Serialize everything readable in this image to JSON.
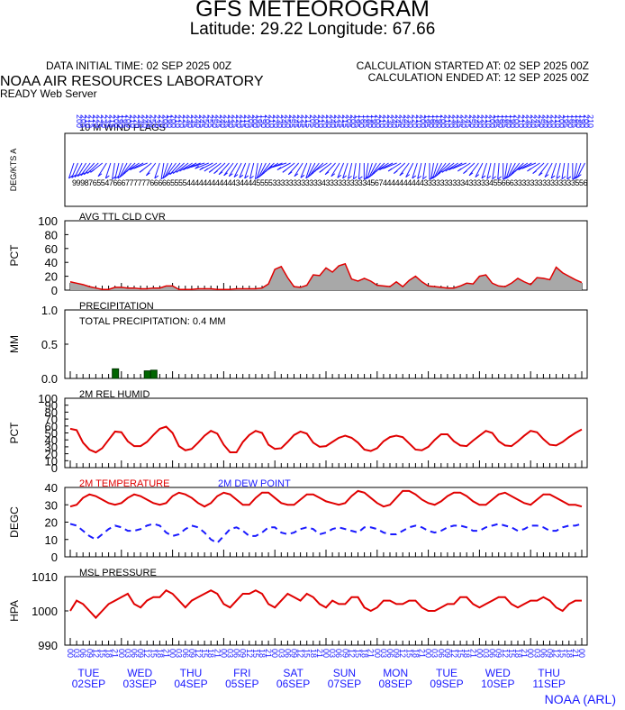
{
  "header": {
    "title": "GFS METEOROGRAM",
    "subtitle": "Latitude: 29.22 Longitude:  67.66",
    "init_time": "DATA INITIAL TIME: 02 SEP 2025 00Z",
    "calc_started": "CALCULATION STARTED AT: 02 SEP 2025 00Z",
    "calc_ended": "CALCULATION ENDED AT: 12 SEP 2025 00Z",
    "org": "NOAA AIR RESOURCES LABORATORY",
    "server": "READY Web Server",
    "footer": "NOAA (ARL)"
  },
  "colors": {
    "red": "#e00000",
    "blue": "#1a1aff",
    "green": "#006600",
    "fill_gray": "#a8a8a8"
  },
  "time_axis": {
    "hours": [
      "00",
      "03",
      "06",
      "09",
      "12",
      "15",
      "18",
      "21"
    ],
    "days": [
      {
        "dow": "TUE",
        "date": "02SEP"
      },
      {
        "dow": "WED",
        "date": "03SEP"
      },
      {
        "dow": "THU",
        "date": "04SEP"
      },
      {
        "dow": "FRI",
        "date": "05SEP"
      },
      {
        "dow": "SAT",
        "date": "06SEP"
      },
      {
        "dow": "SUN",
        "date": "07SEP"
      },
      {
        "dow": "MON",
        "date": "08SEP"
      },
      {
        "dow": "TUE",
        "date": "09SEP"
      },
      {
        "dow": "WED",
        "date": "10SEP"
      },
      {
        "dow": "THU",
        "date": "11SEP"
      }
    ]
  },
  "chart_data": [
    {
      "type": "wind_barbs",
      "title": "10 M  WIND FLAGS",
      "ylabel": "DEG/KTS  A",
      "x_hours": [
        0,
        240
      ],
      "direction_deg": [
        200,
        205,
        210,
        215,
        220,
        225,
        230,
        235,
        215,
        200,
        190,
        195,
        200,
        210,
        220,
        230,
        240,
        245,
        250,
        235,
        220,
        200,
        190,
        200,
        210,
        220,
        225,
        230,
        235,
        240,
        245,
        250,
        255,
        250,
        245,
        240,
        235,
        230,
        225,
        220,
        215,
        210,
        205,
        200,
        195,
        190,
        200,
        210,
        220,
        230,
        240,
        250,
        255,
        245,
        235,
        225,
        215,
        205,
        200,
        210,
        220,
        230,
        240,
        235,
        225,
        215,
        205,
        200,
        195,
        190,
        185,
        180,
        190,
        200,
        210,
        220,
        230,
        240,
        245,
        250,
        240,
        230,
        220,
        210,
        200,
        195,
        190,
        180,
        190,
        200,
        210,
        220,
        230,
        235,
        240,
        245,
        250,
        240,
        230,
        220,
        210,
        200,
        195,
        190,
        185,
        180,
        190,
        200,
        210,
        220,
        230,
        240,
        245,
        250,
        240,
        230,
        220,
        210,
        200,
        195,
        190,
        185,
        180,
        190,
        200,
        210
      ],
      "speed_kts": [
        9,
        9,
        9,
        8,
        7,
        6,
        5,
        5,
        4,
        7,
        6,
        6,
        6,
        7,
        7,
        7,
        7,
        7,
        7,
        6,
        6,
        6,
        6,
        6,
        5,
        5,
        5,
        5,
        4,
        4,
        4,
        4,
        4,
        4,
        4,
        4,
        4,
        4,
        4,
        4,
        3,
        4,
        4,
        4,
        4,
        5,
        5,
        5,
        5,
        3,
        3,
        3,
        3,
        3,
        3,
        3,
        3,
        3,
        3,
        3,
        3,
        4,
        3,
        3,
        3,
        3,
        3,
        3,
        3,
        3,
        3,
        3,
        4,
        5,
        6,
        7,
        4,
        4,
        4,
        4,
        4,
        4,
        4,
        4,
        4,
        4,
        3,
        3,
        3,
        3,
        3,
        3,
        3,
        3,
        3,
        3,
        4,
        3,
        3,
        3,
        3,
        3,
        4,
        5,
        5,
        6,
        6,
        6,
        3,
        3,
        3,
        3,
        3,
        3,
        3,
        3,
        3,
        3,
        3,
        3,
        3,
        3,
        3,
        5,
        5,
        6
      ]
    },
    {
      "type": "area",
      "title": "AVG TTL CLD CVR",
      "ylabel": "PCT",
      "ylim": [
        0,
        100
      ],
      "yticks": [
        0,
        20,
        40,
        60,
        80,
        100
      ],
      "x": [
        0,
        3,
        6,
        9,
        12,
        15,
        18,
        21,
        24,
        27,
        30,
        33,
        36,
        39,
        42,
        45,
        48,
        51,
        54,
        57,
        60,
        63,
        66,
        69,
        72,
        75,
        78,
        81,
        84,
        87,
        90,
        93,
        96,
        99,
        102,
        105,
        108,
        111,
        114,
        117,
        120,
        123,
        126,
        129,
        132,
        135,
        138,
        141,
        144,
        147,
        150,
        153,
        156,
        159,
        162,
        165,
        168,
        171,
        174,
        177,
        180,
        183,
        186,
        189,
        192,
        195,
        198,
        201,
        204,
        207,
        210,
        213,
        216,
        219,
        222,
        225,
        228,
        231,
        234,
        237,
        240
      ],
      "values": [
        12,
        10,
        8,
        5,
        3,
        1,
        1,
        4,
        4,
        3,
        3,
        2,
        2,
        3,
        3,
        6,
        6,
        1,
        1,
        1,
        2,
        2,
        2,
        1,
        1,
        1,
        2,
        2,
        2,
        2,
        3,
        9,
        30,
        34,
        18,
        5,
        4,
        7,
        22,
        21,
        32,
        26,
        35,
        38,
        16,
        13,
        17,
        13,
        7,
        6,
        5,
        12,
        5,
        14,
        20,
        12,
        6,
        5,
        4,
        3,
        3,
        6,
        10,
        9,
        20,
        22,
        10,
        6,
        5,
        10,
        17,
        12,
        8,
        18,
        17,
        15,
        33,
        25,
        20,
        15,
        11
      ]
    },
    {
      "type": "bar",
      "title": "PRECIPITATION",
      "annotation": "TOTAL PRECIPITATION:   0.4 MM",
      "ylabel": "MM",
      "ylim": [
        0,
        1.0
      ],
      "yticks": [
        "0.0",
        "0.5",
        "1.0"
      ],
      "x": [
        21,
        36,
        39
      ],
      "values": [
        0.14,
        0.11,
        0.12
      ]
    },
    {
      "type": "line",
      "title": "2M REL HUMID",
      "ylabel": "PCT",
      "ylim": [
        0,
        100
      ],
      "yticks": [
        0,
        10,
        20,
        30,
        40,
        50,
        60,
        70,
        80,
        90,
        100
      ],
      "x": [
        0,
        3,
        6,
        9,
        12,
        15,
        18,
        21,
        24,
        27,
        30,
        33,
        36,
        39,
        42,
        45,
        48,
        51,
        54,
        57,
        60,
        63,
        66,
        69,
        72,
        75,
        78,
        81,
        84,
        87,
        90,
        93,
        96,
        99,
        102,
        105,
        108,
        111,
        114,
        117,
        120,
        123,
        126,
        129,
        132,
        135,
        138,
        141,
        144,
        147,
        150,
        153,
        156,
        159,
        162,
        165,
        168,
        171,
        174,
        177,
        180,
        183,
        186,
        189,
        192,
        195,
        198,
        201,
        204,
        207,
        210,
        213,
        216,
        219,
        222,
        225,
        228,
        231,
        234,
        237,
        240
      ],
      "series": [
        {
          "name": "",
          "color": "#e00000",
          "values": [
            56,
            54,
            36,
            26,
            22,
            28,
            40,
            52,
            51,
            38,
            31,
            31,
            37,
            47,
            56,
            59,
            50,
            31,
            25,
            27,
            36,
            46,
            53,
            49,
            33,
            22,
            22,
            37,
            47,
            53,
            50,
            33,
            27,
            28,
            37,
            47,
            52,
            49,
            36,
            30,
            31,
            37,
            43,
            46,
            43,
            36,
            26,
            24,
            28,
            38,
            44,
            46,
            44,
            35,
            26,
            25,
            30,
            40,
            48,
            48,
            38,
            32,
            31,
            39,
            46,
            53,
            50,
            38,
            32,
            31,
            38,
            46,
            53,
            51,
            41,
            33,
            32,
            37,
            44,
            50,
            55
          ]
        }
      ]
    },
    {
      "type": "line",
      "title": "2M TEMPERATURE",
      "title2": "2M   DEW POINT",
      "ylabel": "DEGC",
      "ylim": [
        0,
        40
      ],
      "yticks": [
        0,
        10,
        20,
        30,
        40
      ],
      "x": [
        0,
        3,
        6,
        9,
        12,
        15,
        18,
        21,
        24,
        27,
        30,
        33,
        36,
        39,
        42,
        45,
        48,
        51,
        54,
        57,
        60,
        63,
        66,
        69,
        72,
        75,
        78,
        81,
        84,
        87,
        90,
        93,
        96,
        99,
        102,
        105,
        108,
        111,
        114,
        117,
        120,
        123,
        126,
        129,
        132,
        135,
        138,
        141,
        144,
        147,
        150,
        153,
        156,
        159,
        162,
        165,
        168,
        171,
        174,
        177,
        180,
        183,
        186,
        189,
        192,
        195,
        198,
        201,
        204,
        207,
        210,
        213,
        216,
        219,
        222,
        225,
        228,
        231,
        234,
        237,
        240
      ],
      "series": [
        {
          "name": "2M TEMPERATURE",
          "color": "#e00000",
          "values": [
            29,
            30,
            34,
            36,
            35,
            33,
            31,
            30,
            31,
            34,
            36,
            35,
            33,
            31,
            30,
            31,
            35,
            37,
            36,
            34,
            31,
            29,
            31,
            35,
            37,
            36,
            33,
            30,
            30,
            34,
            37,
            37,
            34,
            31,
            30,
            30,
            33,
            36,
            36,
            34,
            32,
            31,
            30,
            31,
            35,
            38,
            37,
            34,
            31,
            29,
            30,
            34,
            38,
            38,
            36,
            33,
            31,
            30,
            32,
            35,
            37,
            37,
            35,
            32,
            30,
            30,
            33,
            36,
            37,
            35,
            33,
            31,
            30,
            33,
            36,
            36,
            34,
            32,
            30,
            30,
            29
          ]
        },
        {
          "name": "2M   DEW POINT",
          "color": "#1a1aff",
          "values": [
            19,
            18,
            15,
            12,
            10,
            13,
            16,
            18,
            17,
            15,
            15,
            16,
            18,
            19,
            18,
            14,
            12,
            13,
            16,
            18,
            17,
            14,
            10,
            8,
            12,
            16,
            17,
            15,
            12,
            12,
            14,
            17,
            17,
            14,
            13,
            14,
            16,
            17,
            16,
            13,
            14,
            16,
            17,
            16,
            15,
            14,
            17,
            17,
            16,
            14,
            13,
            13,
            15,
            17,
            18,
            17,
            15,
            14,
            15,
            17,
            18,
            18,
            17,
            15,
            15,
            17,
            18,
            19,
            18,
            17,
            15,
            16,
            18,
            18,
            17,
            15,
            15,
            17,
            18,
            18,
            19
          ]
        }
      ]
    },
    {
      "type": "line",
      "title": "MSL PRESSURE",
      "ylabel": "HPA",
      "ylim": [
        990,
        1010
      ],
      "yticks": [
        990,
        1000,
        1010
      ],
      "x": [
        0,
        3,
        6,
        9,
        12,
        15,
        18,
        21,
        24,
        27,
        30,
        33,
        36,
        39,
        42,
        45,
        48,
        51,
        54,
        57,
        60,
        63,
        66,
        69,
        72,
        75,
        78,
        81,
        84,
        87,
        90,
        93,
        96,
        99,
        102,
        105,
        108,
        111,
        114,
        117,
        120,
        123,
        126,
        129,
        132,
        135,
        138,
        141,
        144,
        147,
        150,
        153,
        156,
        159,
        162,
        165,
        168,
        171,
        174,
        177,
        180,
        183,
        186,
        189,
        192,
        195,
        198,
        201,
        204,
        207,
        210,
        213,
        216,
        219,
        222,
        225,
        228,
        231,
        234,
        237,
        240
      ],
      "series": [
        {
          "name": "",
          "color": "#e00000",
          "values": [
            1000,
            1003,
            1002,
            1000,
            998,
            1000,
            1002,
            1003,
            1004,
            1005,
            1002,
            1001,
            1003,
            1004,
            1004,
            1006,
            1005,
            1003,
            1001,
            1003,
            1004,
            1005,
            1006,
            1005,
            1002,
            1001,
            1003,
            1005,
            1005,
            1006,
            1005,
            1002,
            1001,
            1003,
            1005,
            1004,
            1003,
            1005,
            1004,
            1002,
            1001,
            1003,
            1002,
            1002,
            1004,
            1004,
            1001,
            1000,
            1001,
            1003,
            1003,
            1002,
            1002,
            1003,
            1003,
            1001,
            1000,
            1000,
            1001,
            1002,
            1002,
            1004,
            1004,
            1002,
            1001,
            1002,
            1003,
            1004,
            1004,
            1002,
            1001,
            1002,
            1003,
            1003,
            1004,
            1003,
            1001,
            1000,
            1002,
            1003,
            1003
          ]
        }
      ]
    }
  ]
}
